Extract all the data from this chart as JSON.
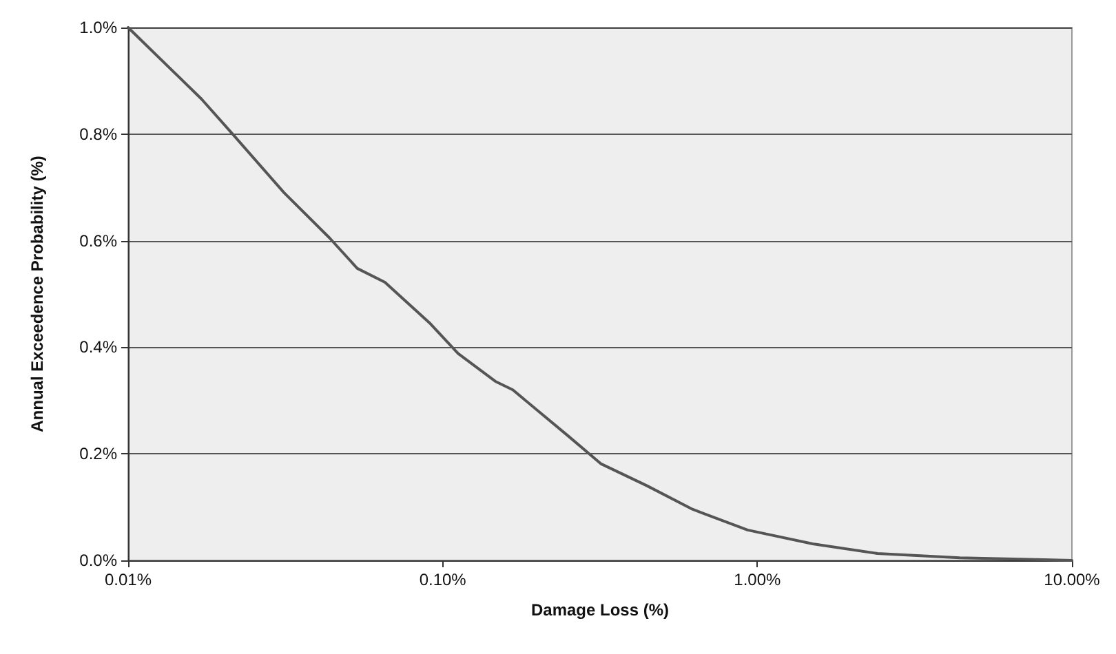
{
  "chart_data": {
    "type": "line",
    "xlabel": "Damage Loss (%)",
    "ylabel": "Annual Exceedence Probability (%)",
    "x": [
      0.01,
      0.0171,
      0.0215,
      0.0313,
      0.0437,
      0.0535,
      0.0655,
      0.0914,
      0.112,
      0.147,
      0.167,
      0.251,
      0.319,
      0.446,
      0.622,
      0.931,
      1.5,
      2.41,
      4.4,
      10
    ],
    "series": [
      {
        "color": "#555555",
        "values": [
          1.0,
          0.866,
          0.8,
          0.69,
          0.605,
          0.548,
          0.522,
          0.444,
          0.388,
          0.336,
          0.32,
          0.233,
          0.181,
          0.14,
          0.096,
          0.057,
          0.031,
          0.013,
          0.005,
          0
        ]
      }
    ],
    "log": "x",
    "xlim": [
      0.01,
      10
    ],
    "xticks": [
      {
        "value": 0.01,
        "label": "0.01%"
      },
      {
        "value": 0.1,
        "label": "0.10%"
      },
      {
        "value": 1,
        "label": "1.00%"
      },
      {
        "value": 10,
        "label": "10.00%"
      }
    ],
    "ylim": [
      0,
      1
    ],
    "yticks": [
      {
        "value": 0,
        "label": "0.0%"
      },
      {
        "value": 0.2,
        "label": "0.2%"
      },
      {
        "value": 0.4,
        "label": "0.4%"
      },
      {
        "value": 0.6,
        "label": "0.6%"
      },
      {
        "value": 0.8,
        "label": "0.8%"
      },
      {
        "value": 1,
        "label": "1.0%"
      }
    ],
    "grid": "y",
    "marker": "none",
    "line_style": "solid"
  }
}
